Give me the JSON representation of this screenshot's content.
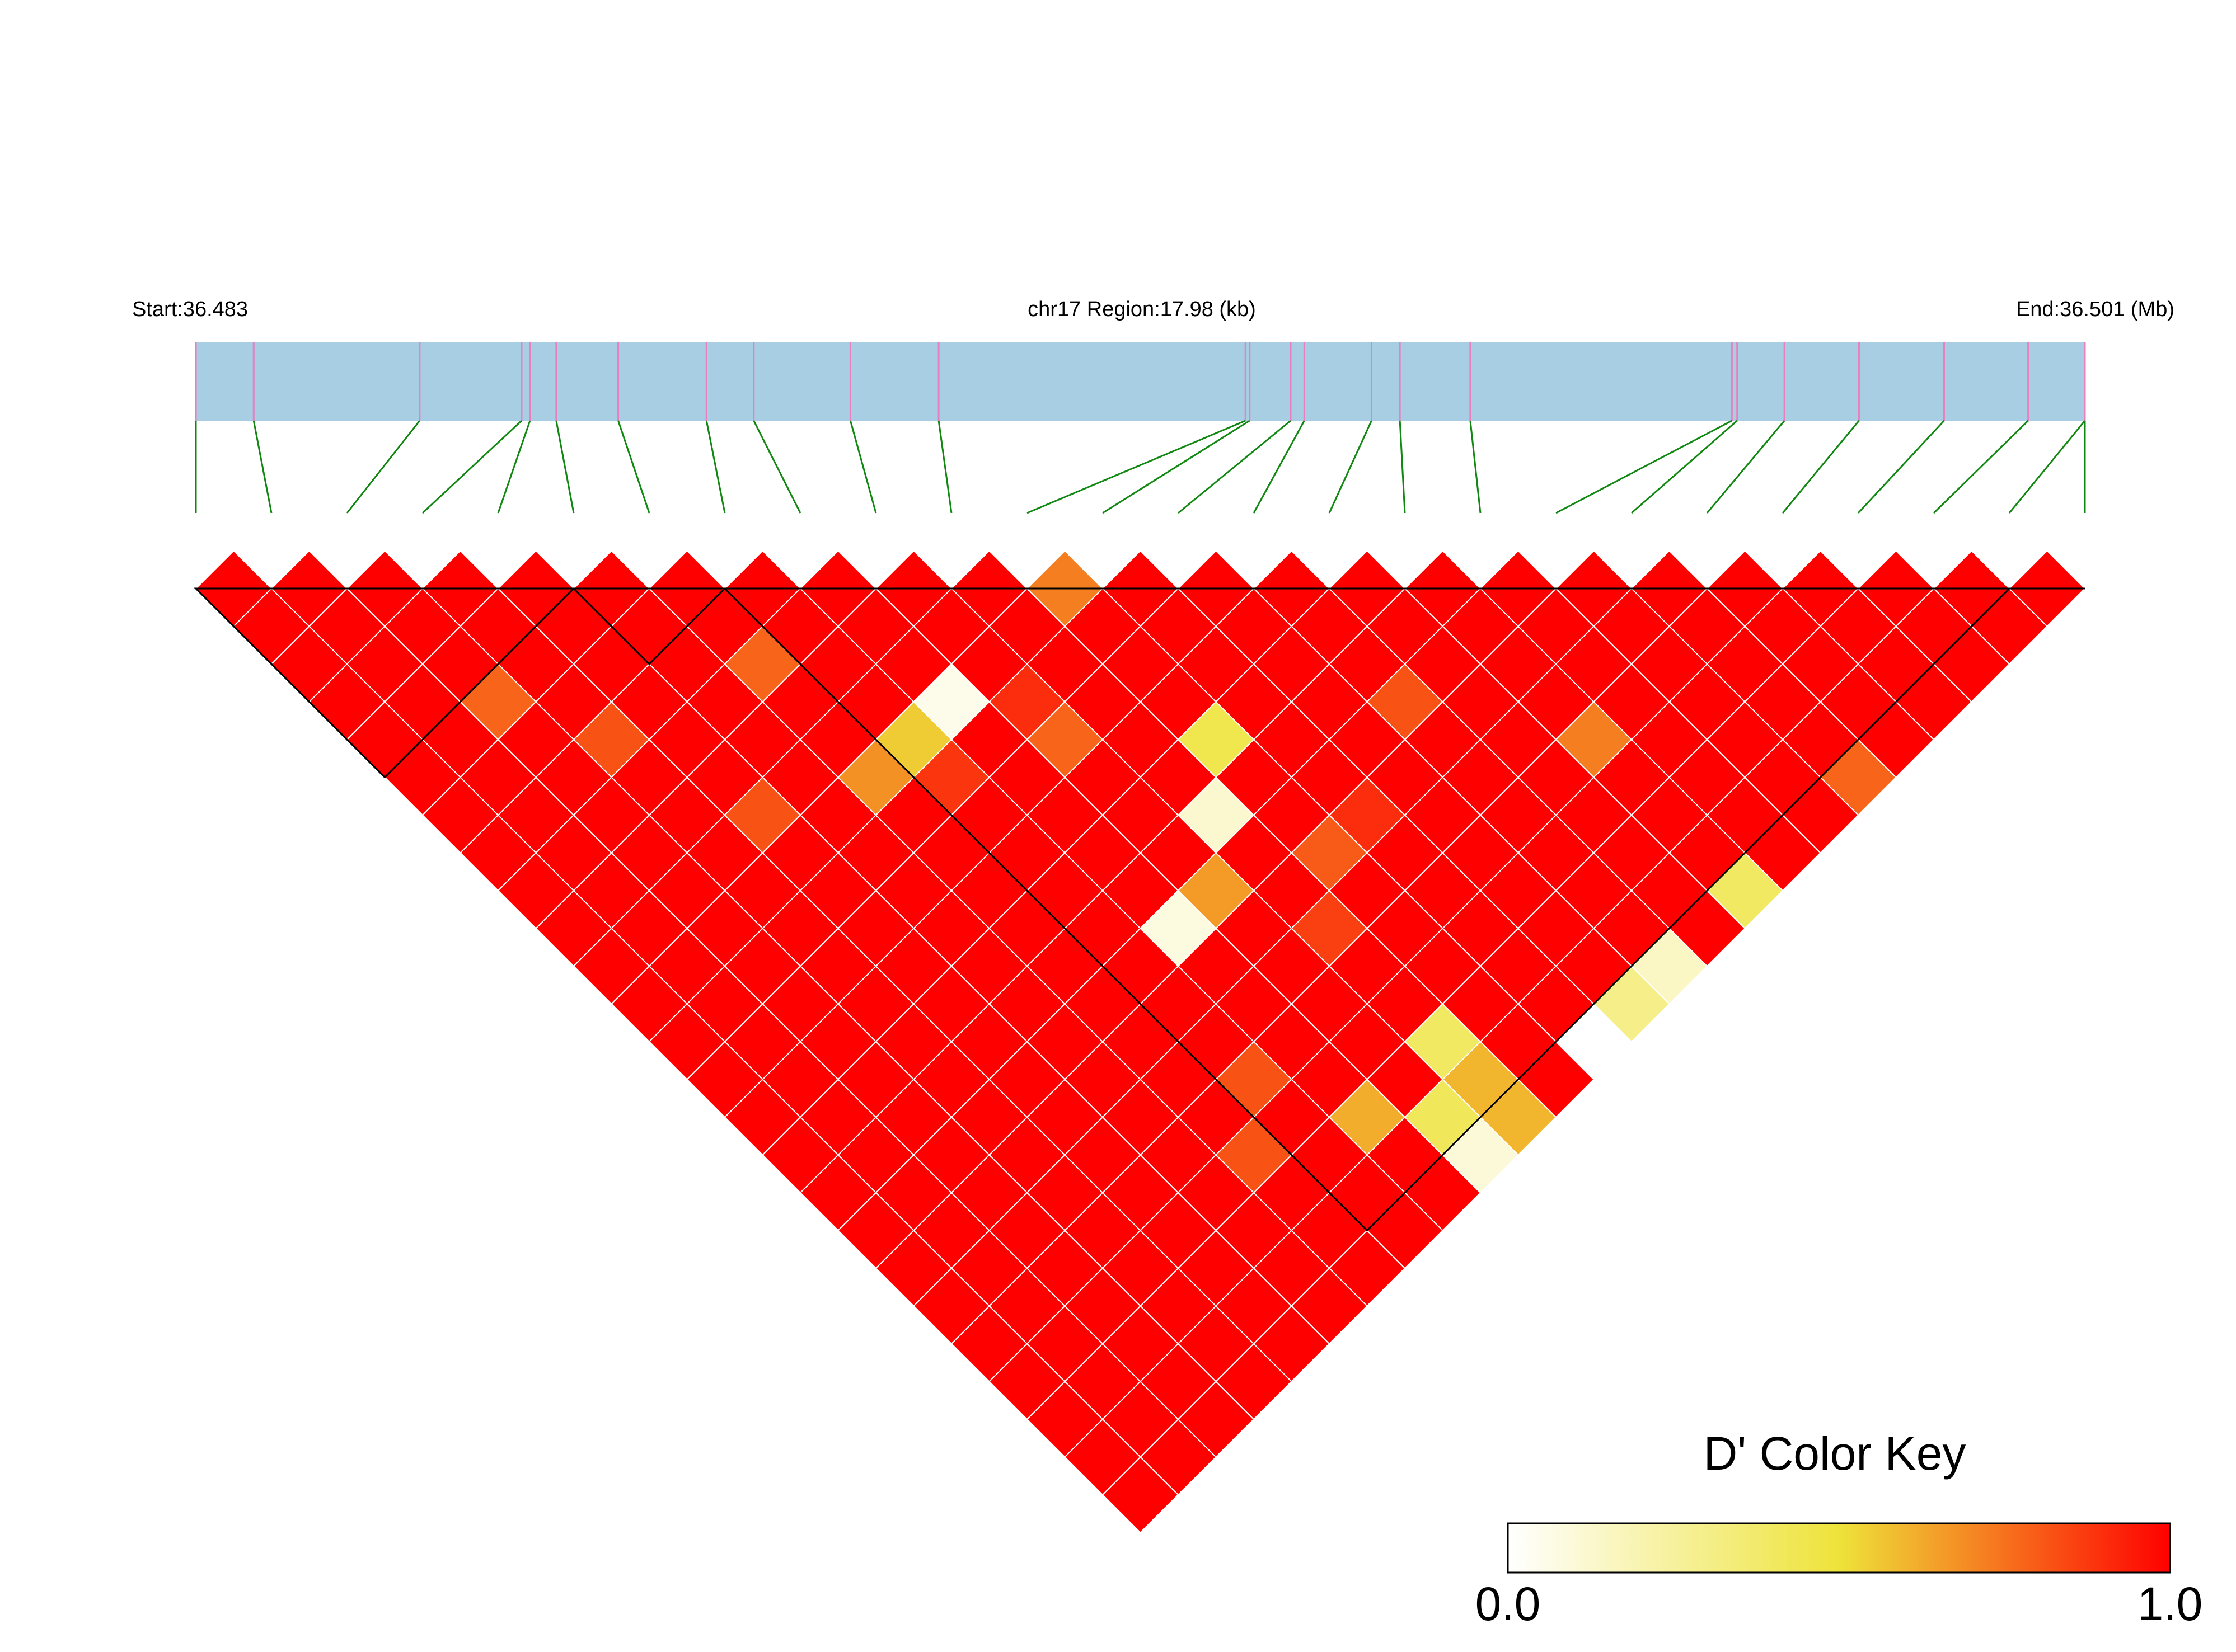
{
  "header": {
    "start_label": "Start:36.483",
    "region_label": "chr17 Region:17.98 (kb)",
    "end_label": "End:36.501 (Mb)"
  },
  "colors": {
    "track_fill": "#A8CEE3",
    "snp_tick": "#E87FBE",
    "connector": "#118811",
    "cell_border": "#ffffff",
    "block_outline": "#000000",
    "high": "#FF0000",
    "mid": "#EEE33A",
    "low": "#FFFFFF"
  },
  "chart_data": {
    "type": "heatmap",
    "subtype": "ld-triangle",
    "metric": "D'",
    "chromosome": "chr17",
    "region_start_mb": 36.483,
    "region_end_mb": 36.501,
    "region_size_kb": 17.98,
    "n_snps": 26,
    "snp_positions_kb": [
      0.0,
      0.55,
      2.13,
      3.1,
      3.18,
      3.43,
      4.02,
      4.86,
      5.31,
      6.23,
      7.07,
      9.99,
      10.03,
      10.42,
      10.55,
      11.19,
      11.46,
      12.13,
      14.62,
      14.67,
      15.12,
      15.83,
      16.64,
      17.44,
      17.98,
      17.98
    ],
    "default_dprime": 1.0,
    "cells": [
      {
        "i": 11,
        "j": 12,
        "dprime": 0.72
      },
      {
        "i": 6,
        "j": 9,
        "dprime": 0.78
      },
      {
        "i": 9,
        "j": 13,
        "dprime": 0.9
      },
      {
        "i": 2,
        "j": 6,
        "dprime": 0.78
      },
      {
        "i": 8,
        "j": 12,
        "dprime": 0.05
      },
      {
        "i": 14,
        "j": 18,
        "dprime": 0.82
      },
      {
        "i": 3,
        "j": 8,
        "dprime": 0.82
      },
      {
        "i": 9,
        "j": 14,
        "dprime": 0.78
      },
      {
        "i": 7,
        "j": 12,
        "dprime": 0.55
      },
      {
        "i": 11,
        "j": 16,
        "dprime": 0.45
      },
      {
        "i": 16,
        "j": 21,
        "dprime": 0.72
      },
      {
        "i": 6,
        "j": 12,
        "dprime": 0.68
      },
      {
        "i": 7,
        "j": 13,
        "dprime": 0.88
      },
      {
        "i": 4,
        "j": 11,
        "dprime": 0.82
      },
      {
        "i": 10,
        "j": 17,
        "dprime": 0.12
      },
      {
        "i": 12,
        "j": 19,
        "dprime": 0.9
      },
      {
        "i": 11,
        "j": 19,
        "dprime": 0.8
      },
      {
        "i": 19,
        "j": 25,
        "dprime": 0.78
      },
      {
        "i": 9,
        "j": 18,
        "dprime": 0.66
      },
      {
        "i": 8,
        "j": 18,
        "dprime": 0.08
      },
      {
        "i": 10,
        "j": 20,
        "dprime": 0.86
      },
      {
        "i": 16,
        "j": 25,
        "dprime": 0.4
      },
      {
        "i": 14,
        "j": 25,
        "dprime": 0.15
      },
      {
        "i": 13,
        "j": 25,
        "dprime": 0.3
      },
      {
        "i": 12,
        "j": 25,
        "dprime": 0.0
      },
      {
        "i": 7,
        "j": 21,
        "dprime": 0.82
      },
      {
        "i": 10,
        "j": 25,
        "dprime": 0.6
      },
      {
        "i": 9,
        "j": 25,
        "dprime": 0.1
      },
      {
        "i": 10,
        "j": 24,
        "dprime": 0.6
      },
      {
        "i": 9,
        "j": 24,
        "dprime": 0.42
      },
      {
        "i": 10,
        "j": 23,
        "dprime": 0.4
      },
      {
        "i": 8,
        "j": 23,
        "dprime": 0.62
      },
      {
        "i": 6,
        "j": 22,
        "dprime": 0.82
      }
    ],
    "blocks": [
      [
        0,
        5
      ],
      [
        5,
        7
      ],
      [
        7,
        24
      ]
    ],
    "legend": {
      "title": "D' Color Key",
      "min_label": "0.0",
      "max_label": "1.0",
      "range": [
        0.0,
        1.0
      ]
    }
  }
}
